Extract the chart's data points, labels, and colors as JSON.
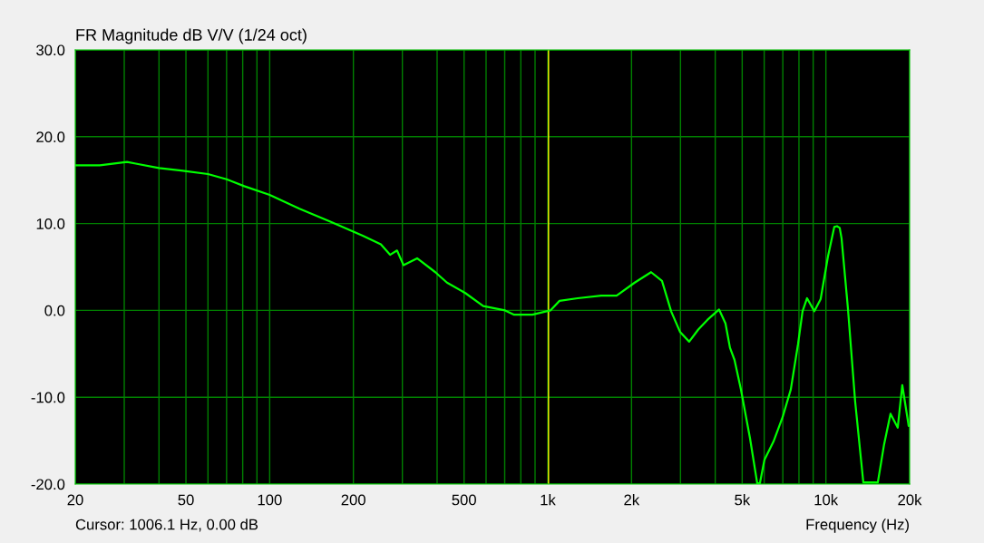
{
  "chart_data": {
    "type": "line",
    "title": "FR Magnitude dB V/V (1/24 oct)",
    "xlabel": "Frequency (Hz)",
    "log": "x",
    "grid": true,
    "legend": false,
    "marker": "none",
    "line_style": "solid",
    "annotations": [
      "Cursor: 1006.1 Hz, 0.00 dB"
    ],
    "ref_lines": [
      {
        "axis": "x",
        "value": 1006.1,
        "color": "#ffff00"
      }
    ],
    "xlim": [
      20,
      20000
    ],
    "ylim": [
      -20,
      30
    ],
    "xticks": [
      20,
      {
        "value": 30,
        "label": null
      },
      {
        "value": 40,
        "label": null
      },
      50,
      {
        "value": 60,
        "label": null
      },
      {
        "value": 70,
        "label": null
      },
      {
        "value": 80,
        "label": null
      },
      {
        "value": 90,
        "label": null
      },
      100,
      200,
      {
        "value": 300,
        "label": null
      },
      {
        "value": 400,
        "label": null
      },
      500,
      {
        "value": 600,
        "label": null
      },
      {
        "value": 700,
        "label": null
      },
      {
        "value": 800,
        "label": null
      },
      {
        "value": 900,
        "label": null
      },
      {
        "value": 1000,
        "label": "1k"
      },
      {
        "value": 2000,
        "label": "2k"
      },
      {
        "value": 3000,
        "label": null
      },
      {
        "value": 4000,
        "label": null
      },
      {
        "value": 5000,
        "label": "5k"
      },
      {
        "value": 6000,
        "label": null
      },
      {
        "value": 7000,
        "label": null
      },
      {
        "value": 8000,
        "label": null
      },
      {
        "value": 9000,
        "label": null
      },
      {
        "value": 10000,
        "label": "10k"
      },
      {
        "value": 20000,
        "label": "20k"
      }
    ],
    "yticks": [
      {
        "value": -20,
        "label": "-20.0"
      },
      {
        "value": -10,
        "label": "-10.0"
      },
      {
        "value": 0,
        "label": "0.0"
      },
      {
        "value": 10,
        "label": "10.0"
      },
      {
        "value": 20,
        "label": "20.0"
      },
      {
        "value": 30,
        "label": "30.0"
      }
    ],
    "series": [
      {
        "color": "#00ff00",
        "x": [
          20,
          24.5,
          30.7,
          33,
          40,
          48,
          60,
          70,
          81,
          100,
          128,
          166,
          216,
          251,
          271,
          287,
          303,
          339,
          394,
          434,
          505,
          586,
          702,
          757,
          880,
          1022,
          1102,
          1280,
          1556,
          1768,
          2054,
          2352,
          2574,
          2776,
          2991,
          3224,
          3476,
          3747,
          4130,
          4354,
          4519,
          4692,
          4947,
          5333,
          5662,
          5790,
          6012,
          6480,
          6987,
          7477,
          7938,
          8241,
          8555,
          9088,
          9572,
          10170,
          10716,
          10962,
          11210,
          11383,
          11995,
          12740,
          13630,
          15370,
          16196,
          17072,
          18126,
          18818,
          19843
        ],
        "values": [
          16.7,
          16.7,
          17.1,
          16.9,
          16.4,
          16.1,
          15.7,
          15.1,
          14.3,
          13.3,
          11.7,
          10.2,
          8.6,
          7.6,
          6.4,
          6.9,
          5.2,
          6.0,
          4.4,
          3.2,
          2.0,
          0.5,
          0.0,
          -0.5,
          -0.5,
          0.0,
          1.1,
          1.4,
          1.7,
          1.7,
          3.2,
          4.4,
          3.4,
          -0.1,
          -2.5,
          -3.6,
          -2.2,
          -1.1,
          0.1,
          -1.5,
          -4.3,
          -5.7,
          -9.1,
          -14.7,
          -19.9,
          -19.9,
          -17.2,
          -15.1,
          -12.3,
          -9.1,
          -3.9,
          -0.1,
          1.4,
          -0.1,
          1.3,
          6.2,
          9.6,
          9.7,
          9.5,
          8.3,
          0.3,
          -10.5,
          -19.8,
          -19.8,
          -15.4,
          -11.9,
          -13.5,
          -8.6,
          -13.3
        ]
      }
    ]
  }
}
